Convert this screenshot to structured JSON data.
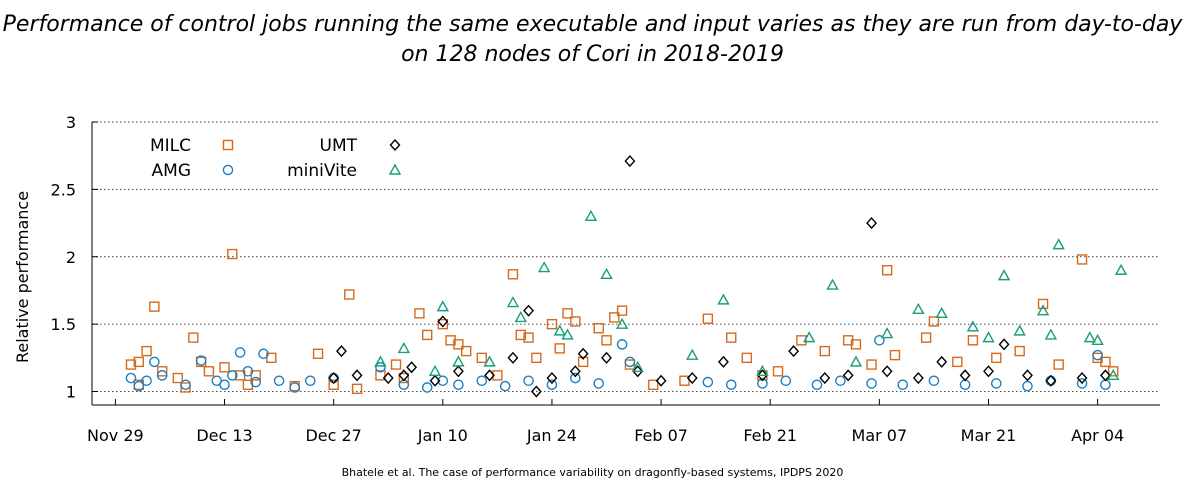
{
  "title_line1": "Performance of control jobs running the same executable and input varies as they are run from day-to-day",
  "title_line2": "on 128 nodes of Cori in 2018-2019",
  "credit": "Bhatele et al. The case of performance variability on dragonfly-based systems, IPDPS 2020",
  "colors": {
    "MILC": "#d66a1c",
    "AMG": "#1f7fc0",
    "UMT": "#000000",
    "miniVite": "#1a9e78"
  },
  "chart_data": {
    "type": "scatter",
    "title": "Performance of control jobs running the same executable and input varies as they are run from day-to-day on 128 nodes of Cori in 2018-2019",
    "xlabel": "",
    "ylabel": "Relative performance",
    "ylim": [
      0.9,
      3.0
    ],
    "y_ticks": [
      1,
      1.5,
      2,
      2.5,
      3
    ],
    "y_tick_labels": [
      "1",
      "1.5",
      "2",
      "2.5",
      "3"
    ],
    "x_ticks": [
      "2018-11-29",
      "2018-12-13",
      "2018-12-27",
      "2019-01-10",
      "2019-01-24",
      "2019-02-07",
      "2019-02-21",
      "2019-03-07",
      "2019-03-21",
      "2019-04-04"
    ],
    "x_tick_labels": [
      "Nov 29",
      "Dec 13",
      "Dec 27",
      "Jan 10",
      "Jan 24",
      "Feb 07",
      "Feb 21",
      "Mar 07",
      "Mar 21",
      "Apr 04"
    ],
    "x_range": [
      "2018-11-26",
      "2019-04-12"
    ],
    "grid": "horizontal dotted",
    "legend": "top-left",
    "series": [
      {
        "name": "MILC",
        "marker": "square",
        "points": [
          [
            "2018-12-01",
            1.2
          ],
          [
            "2018-12-02",
            1.22
          ],
          [
            "2018-12-03",
            1.3
          ],
          [
            "2018-12-04",
            1.63
          ],
          [
            "2018-12-02",
            1.05
          ],
          [
            "2018-12-05",
            1.15
          ],
          [
            "2018-12-07",
            1.1
          ],
          [
            "2018-12-08",
            1.03
          ],
          [
            "2018-12-09",
            1.4
          ],
          [
            "2018-12-10",
            1.22
          ],
          [
            "2018-12-11",
            1.15
          ],
          [
            "2018-12-13",
            1.18
          ],
          [
            "2018-12-14",
            2.02
          ],
          [
            "2018-12-15",
            1.12
          ],
          [
            "2018-12-16",
            1.05
          ],
          [
            "2018-12-17",
            1.12
          ],
          [
            "2018-12-19",
            1.25
          ],
          [
            "2018-12-22",
            1.04
          ],
          [
            "2018-12-25",
            1.28
          ],
          [
            "2018-12-27",
            1.05
          ],
          [
            "2018-12-29",
            1.72
          ],
          [
            "2018-12-30",
            1.02
          ],
          [
            "2019-01-02",
            1.12
          ],
          [
            "2019-01-04",
            1.2
          ],
          [
            "2019-01-05",
            1.1
          ],
          [
            "2019-01-07",
            1.58
          ],
          [
            "2019-01-08",
            1.42
          ],
          [
            "2019-01-10",
            1.5
          ],
          [
            "2019-01-11",
            1.38
          ],
          [
            "2019-01-12",
            1.35
          ],
          [
            "2019-01-13",
            1.3
          ],
          [
            "2019-01-15",
            1.25
          ],
          [
            "2019-01-17",
            1.12
          ],
          [
            "2019-01-19",
            1.87
          ],
          [
            "2019-01-20",
            1.42
          ],
          [
            "2019-01-21",
            1.4
          ],
          [
            "2019-01-22",
            1.25
          ],
          [
            "2019-01-24",
            1.5
          ],
          [
            "2019-01-25",
            1.32
          ],
          [
            "2019-01-26",
            1.58
          ],
          [
            "2019-01-27",
            1.52
          ],
          [
            "2019-01-28",
            1.22
          ],
          [
            "2019-01-30",
            1.47
          ],
          [
            "2019-01-31",
            1.38
          ],
          [
            "2019-02-01",
            1.55
          ],
          [
            "2019-02-02",
            1.6
          ],
          [
            "2019-02-03",
            1.2
          ],
          [
            "2019-02-06",
            1.05
          ],
          [
            "2019-02-10",
            1.08
          ],
          [
            "2019-02-13",
            1.54
          ],
          [
            "2019-02-16",
            1.4
          ],
          [
            "2019-02-18",
            1.25
          ],
          [
            "2019-02-20",
            1.12
          ],
          [
            "2019-02-22",
            1.15
          ],
          [
            "2019-02-25",
            1.38
          ],
          [
            "2019-02-28",
            1.3
          ],
          [
            "2019-03-03",
            1.38
          ],
          [
            "2019-03-04",
            1.35
          ],
          [
            "2019-03-06",
            1.2
          ],
          [
            "2019-03-08",
            1.9
          ],
          [
            "2019-03-09",
            1.27
          ],
          [
            "2019-03-13",
            1.4
          ],
          [
            "2019-03-14",
            1.52
          ],
          [
            "2019-03-17",
            1.22
          ],
          [
            "2019-03-19",
            1.38
          ],
          [
            "2019-03-22",
            1.25
          ],
          [
            "2019-03-25",
            1.3
          ],
          [
            "2019-03-28",
            1.65
          ],
          [
            "2019-03-30",
            1.2
          ],
          [
            "2019-04-02",
            1.98
          ],
          [
            "2019-04-04",
            1.25
          ],
          [
            "2019-04-05",
            1.22
          ],
          [
            "2019-04-06",
            1.15
          ]
        ]
      },
      {
        "name": "AMG",
        "marker": "circle",
        "points": [
          [
            "2018-12-01",
            1.1
          ],
          [
            "2018-12-02",
            1.04
          ],
          [
            "2018-12-03",
            1.08
          ],
          [
            "2018-12-04",
            1.22
          ],
          [
            "2018-12-05",
            1.12
          ],
          [
            "2018-12-08",
            1.05
          ],
          [
            "2018-12-10",
            1.23
          ],
          [
            "2018-12-12",
            1.08
          ],
          [
            "2018-12-13",
            1.05
          ],
          [
            "2018-12-14",
            1.12
          ],
          [
            "2018-12-15",
            1.29
          ],
          [
            "2018-12-16",
            1.15
          ],
          [
            "2018-12-17",
            1.07
          ],
          [
            "2018-12-18",
            1.28
          ],
          [
            "2018-12-20",
            1.08
          ],
          [
            "2018-12-22",
            1.03
          ],
          [
            "2018-12-24",
            1.08
          ],
          [
            "2018-12-27",
            1.1
          ],
          [
            "2019-01-02",
            1.18
          ],
          [
            "2019-01-05",
            1.05
          ],
          [
            "2019-01-08",
            1.03
          ],
          [
            "2019-01-10",
            1.08
          ],
          [
            "2019-01-12",
            1.05
          ],
          [
            "2019-01-15",
            1.08
          ],
          [
            "2019-01-18",
            1.04
          ],
          [
            "2019-01-21",
            1.08
          ],
          [
            "2019-01-24",
            1.05
          ],
          [
            "2019-01-27",
            1.1
          ],
          [
            "2019-01-30",
            1.06
          ],
          [
            "2019-02-02",
            1.35
          ],
          [
            "2019-02-03",
            1.22
          ],
          [
            "2019-02-13",
            1.07
          ],
          [
            "2019-02-16",
            1.05
          ],
          [
            "2019-02-20",
            1.06
          ],
          [
            "2019-02-23",
            1.08
          ],
          [
            "2019-02-27",
            1.05
          ],
          [
            "2019-03-02",
            1.08
          ],
          [
            "2019-03-06",
            1.06
          ],
          [
            "2019-03-07",
            1.38
          ],
          [
            "2019-03-10",
            1.05
          ],
          [
            "2019-03-14",
            1.08
          ],
          [
            "2019-03-18",
            1.05
          ],
          [
            "2019-03-22",
            1.06
          ],
          [
            "2019-03-26",
            1.04
          ],
          [
            "2019-03-29",
            1.08
          ],
          [
            "2019-04-02",
            1.06
          ],
          [
            "2019-04-04",
            1.27
          ],
          [
            "2019-04-05",
            1.05
          ]
        ]
      },
      {
        "name": "UMT",
        "marker": "diamond",
        "points": [
          [
            "2018-12-27",
            1.1
          ],
          [
            "2018-12-28",
            1.3
          ],
          [
            "2018-12-30",
            1.12
          ],
          [
            "2019-01-03",
            1.1
          ],
          [
            "2019-01-05",
            1.12
          ],
          [
            "2019-01-06",
            1.18
          ],
          [
            "2019-01-09",
            1.08
          ],
          [
            "2019-01-10",
            1.52
          ],
          [
            "2019-01-12",
            1.15
          ],
          [
            "2019-01-16",
            1.12
          ],
          [
            "2019-01-19",
            1.25
          ],
          [
            "2019-01-21",
            1.6
          ],
          [
            "2019-01-22",
            1.0
          ],
          [
            "2019-01-24",
            1.1
          ],
          [
            "2019-01-27",
            1.15
          ],
          [
            "2019-01-28",
            1.28
          ],
          [
            "2019-01-31",
            1.25
          ],
          [
            "2019-02-03",
            2.71
          ],
          [
            "2019-02-04",
            1.15
          ],
          [
            "2019-02-07",
            1.08
          ],
          [
            "2019-02-11",
            1.1
          ],
          [
            "2019-02-15",
            1.22
          ],
          [
            "2019-02-20",
            1.12
          ],
          [
            "2019-02-24",
            1.3
          ],
          [
            "2019-02-28",
            1.1
          ],
          [
            "2019-03-03",
            1.12
          ],
          [
            "2019-03-06",
            2.25
          ],
          [
            "2019-03-08",
            1.15
          ],
          [
            "2019-03-12",
            1.1
          ],
          [
            "2019-03-15",
            1.22
          ],
          [
            "2019-03-18",
            1.12
          ],
          [
            "2019-03-21",
            1.15
          ],
          [
            "2019-03-23",
            1.35
          ],
          [
            "2019-03-26",
            1.12
          ],
          [
            "2019-03-29",
            1.08
          ],
          [
            "2019-04-02",
            1.1
          ],
          [
            "2019-04-05",
            1.12
          ]
        ]
      },
      {
        "name": "miniVite",
        "marker": "triangle",
        "points": [
          [
            "2019-01-02",
            1.22
          ],
          [
            "2019-01-05",
            1.32
          ],
          [
            "2019-01-09",
            1.15
          ],
          [
            "2019-01-10",
            1.63
          ],
          [
            "2019-01-12",
            1.22
          ],
          [
            "2019-01-16",
            1.22
          ],
          [
            "2019-01-19",
            1.66
          ],
          [
            "2019-01-20",
            1.55
          ],
          [
            "2019-01-23",
            1.92
          ],
          [
            "2019-01-25",
            1.45
          ],
          [
            "2019-01-26",
            1.42
          ],
          [
            "2019-01-29",
            2.3
          ],
          [
            "2019-01-31",
            1.87
          ],
          [
            "2019-02-02",
            1.5
          ],
          [
            "2019-02-04",
            1.18
          ],
          [
            "2019-02-11",
            1.27
          ],
          [
            "2019-02-15",
            1.68
          ],
          [
            "2019-02-20",
            1.15
          ],
          [
            "2019-02-26",
            1.4
          ],
          [
            "2019-03-01",
            1.79
          ],
          [
            "2019-03-04",
            1.22
          ],
          [
            "2019-03-08",
            1.43
          ],
          [
            "2019-03-12",
            1.61
          ],
          [
            "2019-03-15",
            1.58
          ],
          [
            "2019-03-19",
            1.48
          ],
          [
            "2019-03-21",
            1.4
          ],
          [
            "2019-03-23",
            1.86
          ],
          [
            "2019-03-25",
            1.45
          ],
          [
            "2019-03-28",
            1.6
          ],
          [
            "2019-03-29",
            1.42
          ],
          [
            "2019-03-30",
            2.09
          ],
          [
            "2019-04-03",
            1.4
          ],
          [
            "2019-04-04",
            1.38
          ],
          [
            "2019-04-06",
            1.12
          ],
          [
            "2019-04-07",
            1.9
          ]
        ]
      }
    ]
  }
}
